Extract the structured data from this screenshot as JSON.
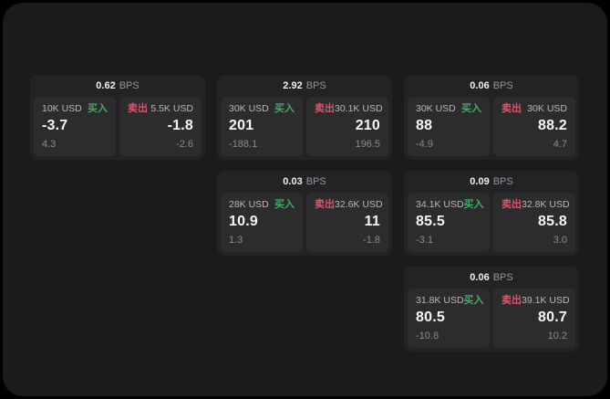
{
  "colors": {
    "buy": "#44ab63",
    "sell": "#d95669",
    "panel_bg": "#1b1b1d",
    "card_bg": "#232326",
    "tile_bg": "#2c2c2f"
  },
  "labels": {
    "bps_unit": "BPS",
    "buy": "买入",
    "sell": "卖出"
  },
  "cards": [
    {
      "row": 1,
      "col": 1,
      "bps": "0.62",
      "buy": {
        "amount": "10K USD",
        "price": "-3.7",
        "delta": "4.3"
      },
      "sell": {
        "amount": "5.5K USD",
        "price": "-1.8",
        "delta": "-2.6"
      }
    },
    {
      "row": 1,
      "col": 2,
      "bps": "2.92",
      "buy": {
        "amount": "30K USD",
        "price": "201",
        "delta": "-188.1"
      },
      "sell": {
        "amount": "30.1K USD",
        "price": "210",
        "delta": "196.5"
      }
    },
    {
      "row": 1,
      "col": 3,
      "bps": "0.06",
      "buy": {
        "amount": "30K USD",
        "price": "88",
        "delta": "-4.9"
      },
      "sell": {
        "amount": "30K USD",
        "price": "88.2",
        "delta": "4.7"
      }
    },
    {
      "row": 2,
      "col": 2,
      "bps": "0.03",
      "buy": {
        "amount": "28K USD",
        "price": "10.9",
        "delta": "1.3"
      },
      "sell": {
        "amount": "32.6K USD",
        "price": "11",
        "delta": "-1.8"
      }
    },
    {
      "row": 2,
      "col": 3,
      "bps": "0.09",
      "buy": {
        "amount": "34.1K USD",
        "price": "85.5",
        "delta": "-3.1"
      },
      "sell": {
        "amount": "32.8K USD",
        "price": "85.8",
        "delta": "3.0"
      }
    },
    {
      "row": 3,
      "col": 3,
      "bps": "0.06",
      "buy": {
        "amount": "31.8K USD",
        "price": "80.5",
        "delta": "-10.8"
      },
      "sell": {
        "amount": "39.1K USD",
        "price": "80.7",
        "delta": "10.2"
      }
    }
  ]
}
